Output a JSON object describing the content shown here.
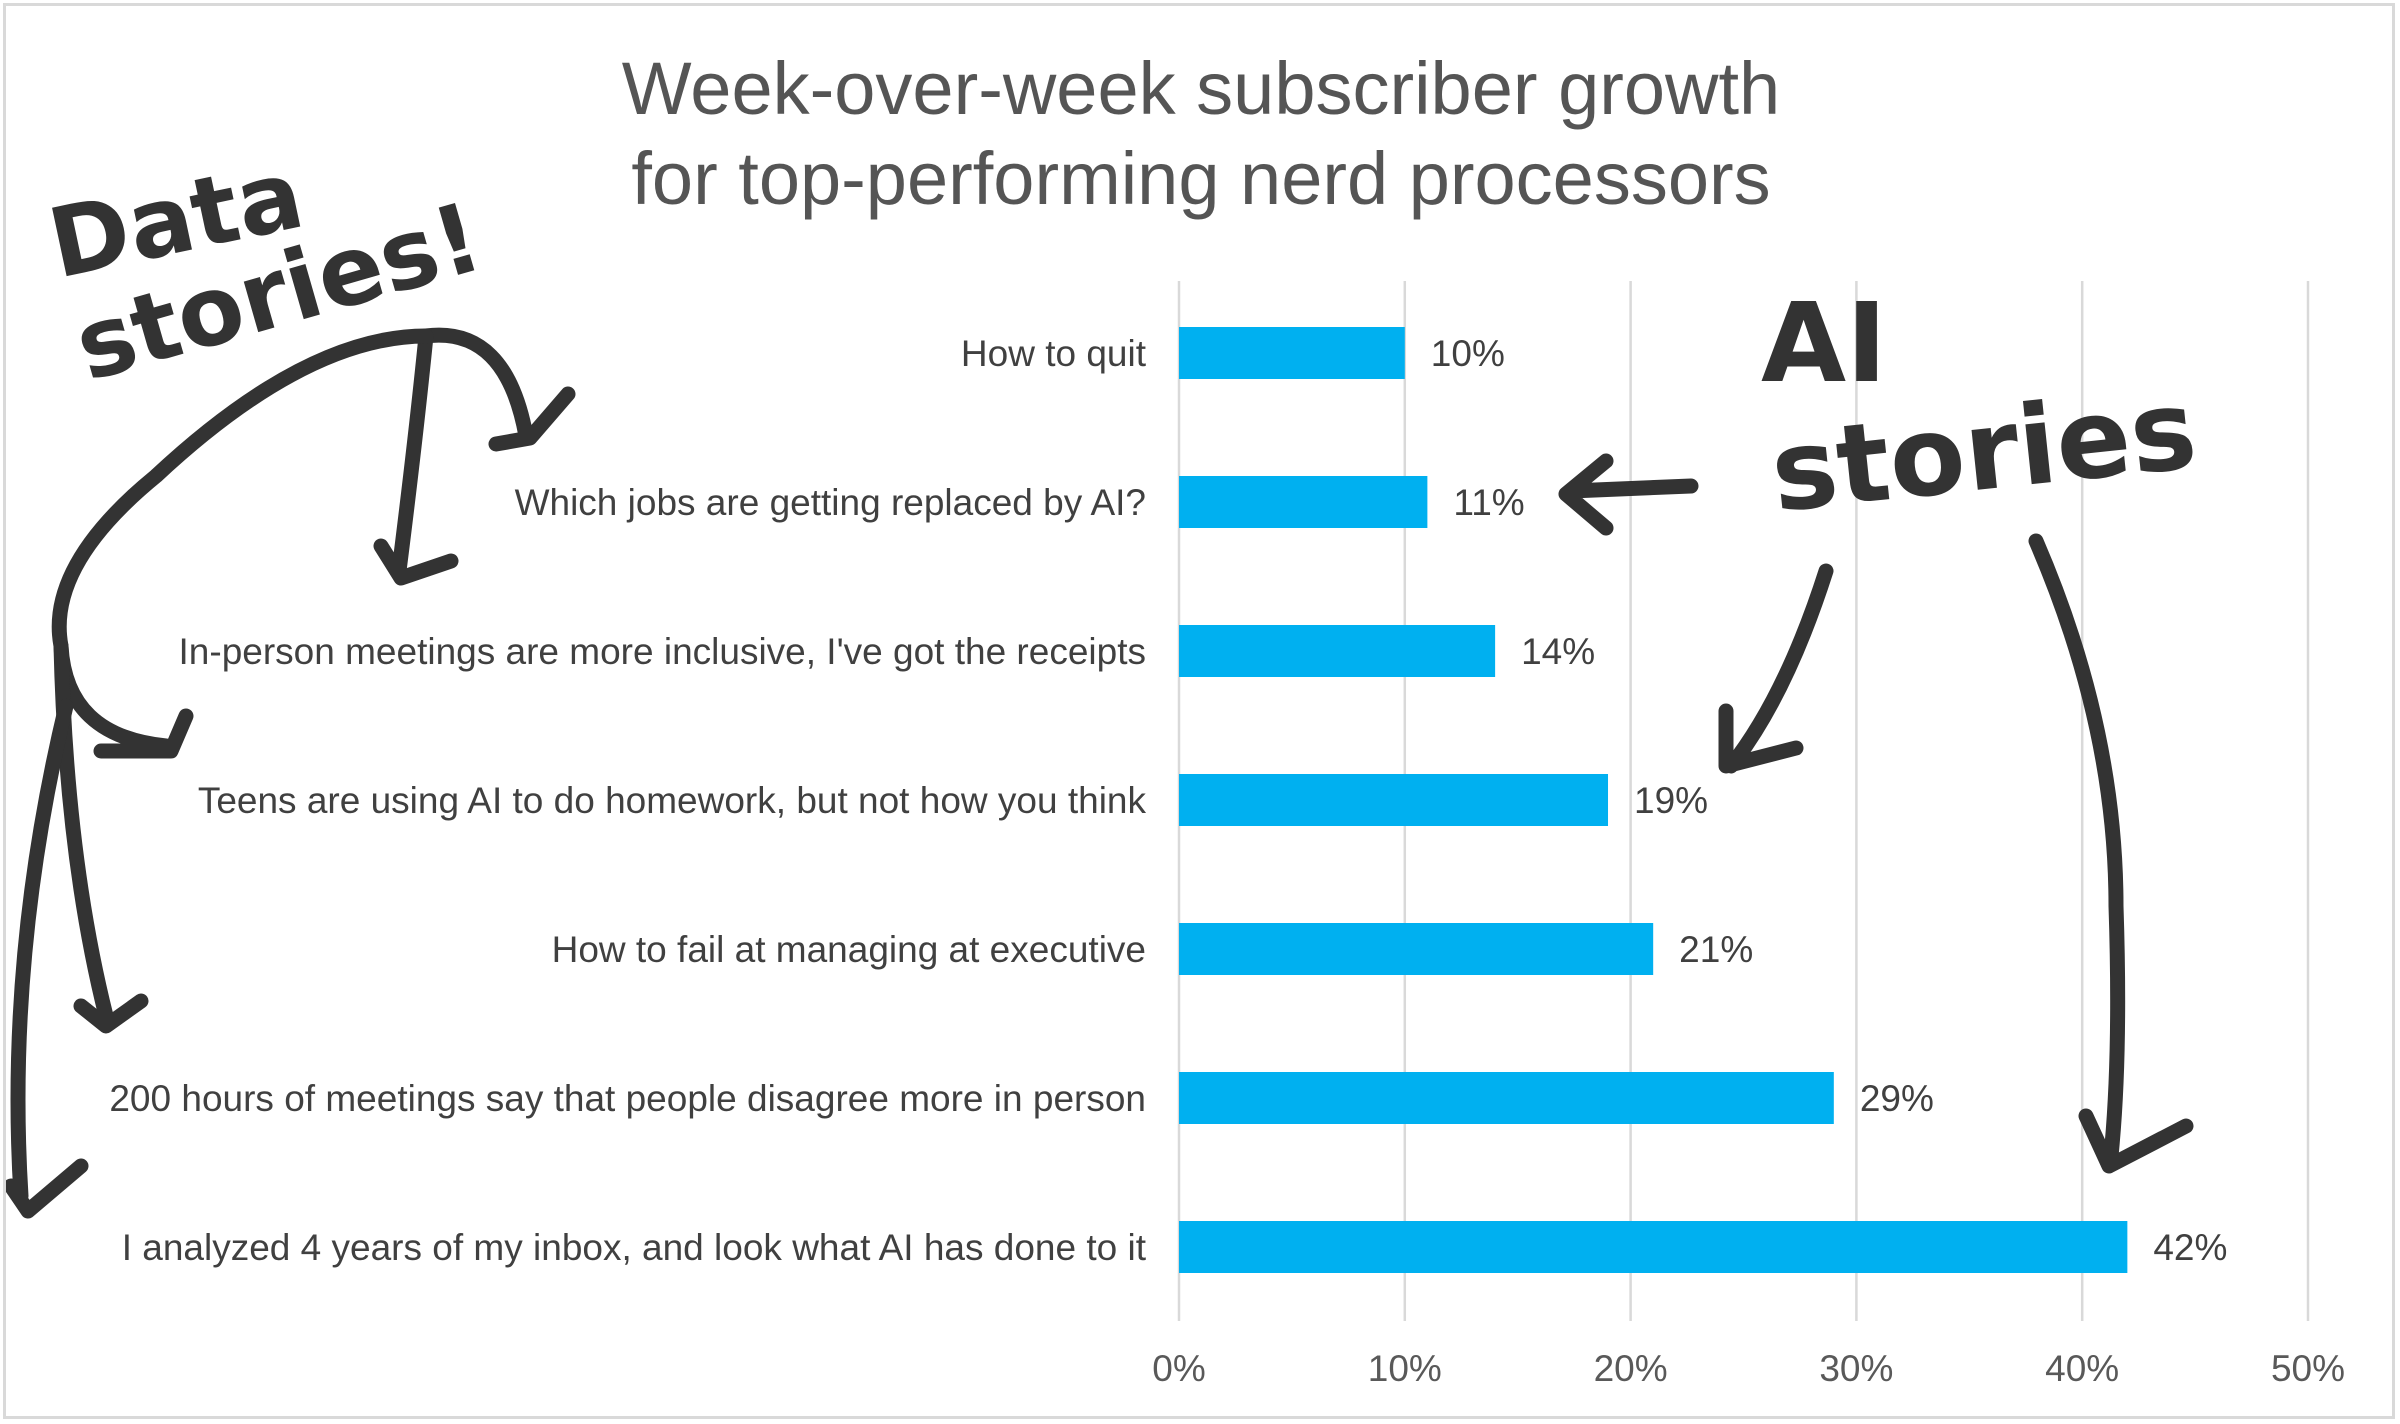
{
  "chart_data": {
    "type": "bar",
    "orientation": "horizontal",
    "title": "Week-over-week subscriber growth for top-performing nerd processors",
    "title_lines": [
      "Week-over-week subscriber growth",
      "for top-performing nerd processors"
    ],
    "categories": [
      "How to quit",
      "Which jobs are getting replaced by AI?",
      "In-person meetings are more inclusive, I've got the receipts",
      "Teens are using AI to do homework, but not how you think",
      "How to fail at managing at executive",
      "200 hours of meetings say that people disagree more in person",
      "I analyzed 4 years of my inbox, and look what AI has done to it"
    ],
    "values": [
      10,
      11,
      14,
      19,
      21,
      29,
      42
    ],
    "value_labels": [
      "10%",
      "11%",
      "14%",
      "19%",
      "21%",
      "29%",
      "42%"
    ],
    "xlim": [
      0,
      50
    ],
    "xticks": [
      0,
      10,
      20,
      30,
      40,
      50
    ],
    "xtick_labels": [
      "0%",
      "10%",
      "20%",
      "30%",
      "40%",
      "50%"
    ],
    "xlabel": "",
    "ylabel": "",
    "grid": "vertical",
    "legend": "none",
    "bar_color": "#00b0f0",
    "annotations": {
      "data_stories": [
        "Data",
        "stories!"
      ],
      "ai_stories": [
        "AI",
        "stories"
      ]
    }
  }
}
